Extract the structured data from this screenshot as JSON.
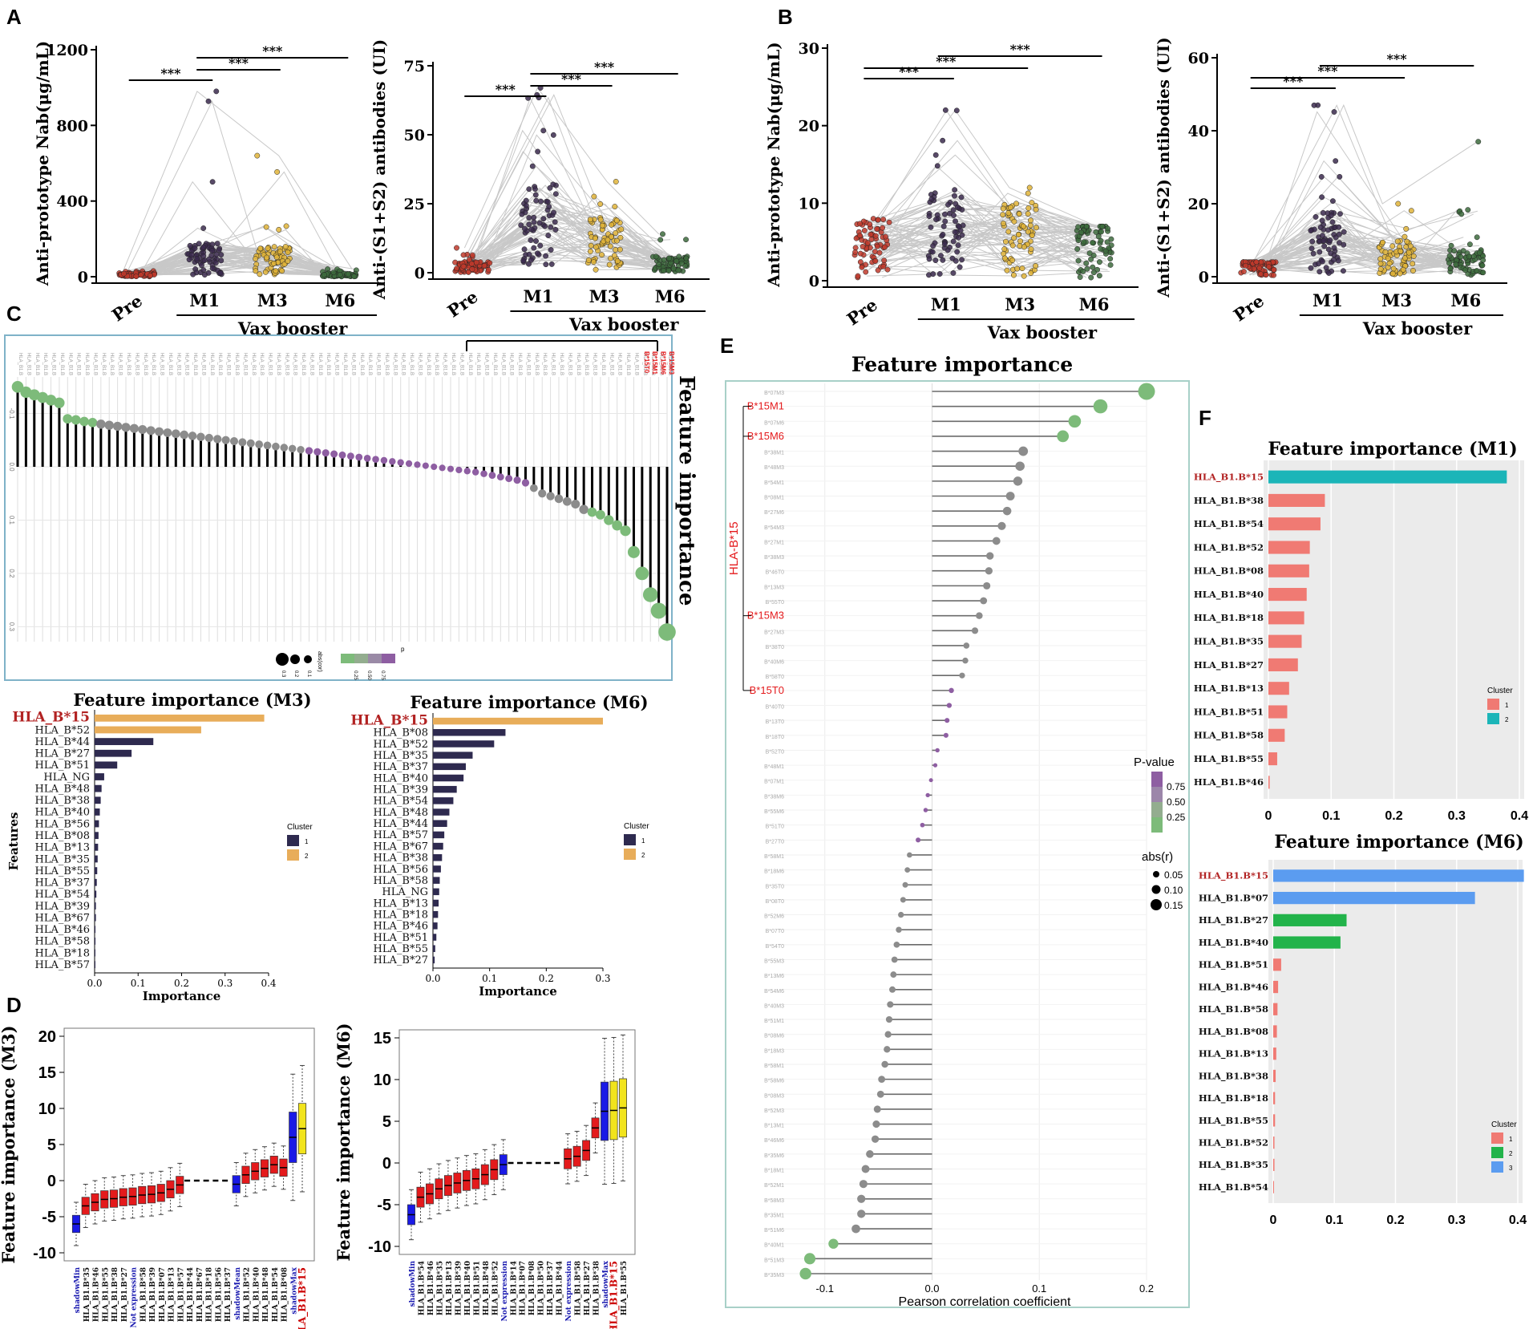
{
  "panel_labels": [
    "A",
    "B",
    "C",
    "D",
    "E",
    "F"
  ],
  "colors": {
    "pre": "#c0392b",
    "m1": "#3b2a4d",
    "m3": "#e0b43a",
    "m6": "#3d6b3d",
    "line": "#c8c8c8",
    "navy": "#2e2a4f",
    "orange": "#e8ad5a",
    "teal": "#1bb5b8",
    "salmon": "#f07a73",
    "blue": "#5b9cf0",
    "green": "#22b34a",
    "red": "#e41a1c",
    "boxblue": "#1a1ae6",
    "yellow": "#f2e41c",
    "lollipop_green": "#7dbb7a",
    "lollipop_grey": "#8c8c8c",
    "lollipop_purple": "#8e5ea2"
  },
  "chart_data": [
    {
      "id": "A1",
      "type": "scatter",
      "ylabel": "Anti-prototype Nab(μg/mL)",
      "ylim": [
        0,
        1200
      ],
      "yticks": [
        0,
        400,
        800,
        1200
      ],
      "categories": [
        "Pre",
        "M1",
        "M3",
        "M6"
      ],
      "group_label": "Vax booster",
      "medians": [
        10,
        90,
        80,
        8
      ],
      "maxima": [
        30,
        980,
        640,
        40
      ],
      "significance": [
        {
          "from": "Pre",
          "to": "M1",
          "label": "***"
        },
        {
          "from": "M1",
          "to": "M3",
          "label": "***"
        },
        {
          "from": "M1",
          "to": "M6",
          "label": "***"
        }
      ]
    },
    {
      "id": "A2",
      "type": "scatter",
      "ylabel": "Anti-(S1+S2) antibodies (UI)",
      "ylim": [
        0,
        75
      ],
      "yticks": [
        0,
        25,
        50,
        75
      ],
      "categories": [
        "Pre",
        "M1",
        "M3",
        "M6"
      ],
      "group_label": "Vax booster",
      "medians": [
        2,
        16,
        10,
        3
      ],
      "maxima": [
        9,
        67,
        33,
        14
      ],
      "significance": [
        {
          "from": "Pre",
          "to": "M1",
          "label": "***"
        },
        {
          "from": "M1",
          "to": "M3",
          "label": "***"
        },
        {
          "from": "M1",
          "to": "M6",
          "label": "***"
        }
      ]
    },
    {
      "id": "B1",
      "type": "scatter",
      "ylabel": "Anti-prototype Nab(μg/mL)",
      "ylim": [
        0,
        30
      ],
      "yticks": [
        0,
        10,
        20,
        30
      ],
      "categories": [
        "Pre",
        "M1",
        "M3",
        "M6"
      ],
      "group_label": "Vax booster",
      "medians": [
        4,
        6,
        5,
        4
      ],
      "maxima": [
        8,
        22,
        12,
        7
      ],
      "significance": [
        {
          "from": "Pre",
          "to": "M1",
          "label": "***"
        },
        {
          "from": "Pre",
          "to": "M3",
          "label": "***"
        },
        {
          "from": "M1",
          "to": "M6",
          "label": "***"
        }
      ]
    },
    {
      "id": "B2",
      "type": "scatter",
      "ylabel": "Anti-(S1+S2) antibodies (UI)",
      "ylim": [
        0,
        60
      ],
      "yticks": [
        0,
        20,
        40,
        60
      ],
      "categories": [
        "Pre",
        "M1",
        "M3",
        "M6"
      ],
      "group_label": "Vax booster",
      "medians": [
        3,
        9,
        5,
        4
      ],
      "maxima": [
        4,
        47,
        20,
        37
      ],
      "significance": [
        {
          "from": "Pre",
          "to": "M1",
          "label": "***"
        },
        {
          "from": "Pre",
          "to": "M3",
          "label": "***"
        },
        {
          "from": "M1",
          "to": "M6",
          "label": "***"
        }
      ]
    },
    {
      "id": "C_lollipop",
      "type": "lollipop",
      "title": "Feature importance",
      "ytick_labels": [
        "-0.1",
        "0.0",
        "0.1",
        "0.2",
        "0.3"
      ],
      "highlighted": [
        "B*15T0",
        "B*15M1",
        "B*15M6",
        "B*15M3"
      ],
      "legend": {
        "size_title": "abs(cor)",
        "size_labels": [
          "0.3",
          "0.2",
          "0.1"
        ],
        "color_title": "p",
        "color_labels": [
          "0.25",
          "0.50",
          "0.75"
        ]
      },
      "values": [
        -0.15,
        -0.14,
        -0.135,
        -0.13,
        -0.125,
        -0.12,
        -0.09,
        -0.088,
        -0.085,
        -0.083,
        -0.08,
        -0.078,
        -0.076,
        -0.074,
        -0.072,
        -0.07,
        -0.068,
        -0.066,
        -0.064,
        -0.062,
        -0.06,
        -0.058,
        -0.056,
        -0.054,
        -0.052,
        -0.05,
        -0.048,
        -0.046,
        -0.044,
        -0.042,
        -0.04,
        -0.038,
        -0.036,
        -0.034,
        -0.032,
        -0.03,
        -0.028,
        -0.026,
        -0.024,
        -0.022,
        -0.02,
        -0.018,
        -0.016,
        -0.014,
        -0.012,
        -0.01,
        -0.008,
        -0.006,
        -0.004,
        -0.002,
        0.0,
        0.002,
        0.004,
        0.006,
        0.008,
        0.01,
        0.013,
        0.016,
        0.019,
        0.022,
        0.025,
        0.03,
        0.04,
        0.05,
        0.055,
        0.06,
        0.065,
        0.07,
        0.08,
        0.085,
        0.09,
        0.1,
        0.11,
        0.12,
        0.16,
        0.2,
        0.24,
        0.27,
        0.31
      ]
    },
    {
      "id": "C_M3",
      "type": "bar",
      "title": "Feature importance (M3)",
      "xlabel": "Importance",
      "ylabel": "Features",
      "xlim": [
        0,
        0.4
      ],
      "xticks": [
        "0.0",
        "0.1",
        "0.2",
        "0.3",
        "0.4"
      ],
      "categories": [
        "HLA_B*15",
        "HLA_B*52",
        "HLA_B*44",
        "HLA_B*27",
        "HLA_B*51",
        "HLA_NG",
        "HLA_B*48",
        "HLA_B*38",
        "HLA_B*40",
        "HLA_B*56",
        "HLA_B*08",
        "HLA_B*13",
        "HLA_B*35",
        "HLA_B*55",
        "HLA_B*37",
        "HLA_B*54",
        "HLA_B*39",
        "HLA_B*67",
        "HLA_B*46",
        "HLA_B*58",
        "HLA_B*18",
        "HLA_B*57"
      ],
      "values": [
        0.39,
        0.245,
        0.135,
        0.085,
        0.052,
        0.022,
        0.016,
        0.014,
        0.012,
        0.01,
        0.009,
        0.008,
        0.007,
        0.006,
        0.005,
        0.004,
        0.003,
        0.003,
        0.002,
        0.002,
        0.001,
        0.001
      ],
      "cluster": [
        2,
        2,
        1,
        1,
        1,
        1,
        1,
        1,
        1,
        1,
        1,
        1,
        1,
        1,
        1,
        1,
        1,
        1,
        1,
        1,
        1,
        1
      ],
      "legend_title": "Cluster",
      "legend_items": [
        "1",
        "2"
      ]
    },
    {
      "id": "C_M6",
      "type": "bar",
      "title": "Feature importance (M6)",
      "xlabel": "Importance",
      "xlim": [
        0,
        0.3
      ],
      "xticks": [
        "0.0",
        "0.1",
        "0.2",
        "0.3"
      ],
      "categories": [
        "HLA_B*15",
        "HLA_B*08",
        "HLA_B*52",
        "HLA_B*35",
        "HLA_B*37",
        "HLA_B*40",
        "HLA_B*39",
        "HLA_B*54",
        "HLA_B*48",
        "HLA_B*44",
        "HLA_B*57",
        "HLA_B*67",
        "HLA_B*38",
        "HLA_B*56",
        "HLA_B*58",
        "HLA_NG",
        "HLA_B*13",
        "HLA_B*18",
        "HLA_B*46",
        "HLA_B*51",
        "HLA_B*55",
        "HLA_B*27"
      ],
      "values": [
        0.3,
        0.128,
        0.108,
        0.07,
        0.058,
        0.054,
        0.042,
        0.036,
        0.029,
        0.025,
        0.02,
        0.018,
        0.016,
        0.014,
        0.012,
        0.011,
        0.01,
        0.009,
        0.008,
        0.006,
        0.004,
        0.003
      ],
      "cluster": [
        2,
        1,
        1,
        1,
        1,
        1,
        1,
        1,
        1,
        1,
        1,
        1,
        1,
        1,
        1,
        1,
        1,
        1,
        1,
        1,
        1,
        1
      ],
      "legend_title": "Cluster",
      "legend_items": [
        "1",
        "2"
      ]
    },
    {
      "id": "D_M3",
      "type": "box",
      "ylabel": "Feature importance (M3)",
      "ylim": [
        -10,
        20
      ],
      "yticks": [
        -10,
        -5,
        0,
        5,
        10,
        15,
        20
      ],
      "categories": [
        "shadowMin",
        "HLA_B1.B*35",
        "HLA_B1.B*46",
        "HLA_B1.B*55",
        "HLA_B1.B*38",
        "HLA_B1.B*27",
        "Not expression",
        "HLA_B1.B*58",
        "HLA_B1.B*39",
        "HLA_B1.B*07",
        "HLA_B1.B*13",
        "HLA_B1.B*57",
        "HLA_B1.B*44",
        "HLA_B1.B*67",
        "HLA_B1.B*18",
        "HLA_B1.B*56",
        "HLA_B1.B*37",
        "shadowMean",
        "HLA_B1.B*52",
        "HLA_B1.B*40",
        "HLA_B1.B*48",
        "HLA_B1.B*54",
        "HLA_B1.B*08",
        "shadowMax",
        "HLA_B1.B*15"
      ],
      "medians": [
        -6.0,
        -3.5,
        -3.0,
        -2.6,
        -2.5,
        -2.3,
        -2.2,
        -2.0,
        -1.9,
        -1.7,
        -1.2,
        -0.6,
        0,
        0,
        0,
        0,
        0,
        -0.5,
        0.8,
        1.3,
        1.7,
        2.2,
        1.8,
        6.0,
        7.2
      ],
      "kinds": [
        "shadow",
        "rejected",
        "rejected",
        "rejected",
        "rejected",
        "rejected",
        "rejected",
        "rejected",
        "rejected",
        "rejected",
        "rejected",
        "rejected",
        "tentative",
        "tentative",
        "tentative",
        "tentative",
        "tentative",
        "shadow",
        "confirmed",
        "confirmed",
        "confirmed",
        "confirmed",
        "confirmed",
        "shadow",
        "top"
      ]
    },
    {
      "id": "D_M6",
      "type": "box",
      "ylabel": "Feature importance (M6)",
      "ylim": [
        -10,
        15
      ],
      "yticks": [
        -10,
        -5,
        0,
        5,
        10,
        15
      ],
      "categories": [
        "shadowMin",
        "HLA_B1.B*54",
        "HLA_B1.B*46",
        "HLA_B1.B*35",
        "HLA_B1.B*13",
        "HLA_B1.B*39",
        "HLA_B1.B*40",
        "HLA_B1.B*51",
        "HLA_B1.B*48",
        "HLA_B1.B*52",
        "Not expression",
        "HLA_B1.B*14",
        "HLA_B1.B*07",
        "HLA_B1.B*08",
        "HLA_B1.B*50",
        "HLA_B1.B*37",
        "HLA_B1.B*44",
        "Not expression",
        "HLA_B1.B*58",
        "HLA_B1.B*27",
        "HLA_B1.B*38",
        "shadowMax",
        "HLA_B1.B*15",
        "HLA_B1.B*55"
      ],
      "medians": [
        -6.2,
        -4.1,
        -3.7,
        -3.1,
        -2.7,
        -2.4,
        -2.1,
        -1.9,
        -1.4,
        -0.8,
        -0.2,
        0,
        0,
        0,
        0,
        0,
        0,
        0.5,
        0.8,
        1.5,
        4.2,
        6.2,
        6.3,
        6.6
      ],
      "kinds": [
        "shadow",
        "rejected",
        "rejected",
        "rejected",
        "rejected",
        "rejected",
        "rejected",
        "rejected",
        "rejected",
        "rejected",
        "shadow",
        "tentative",
        "tentative",
        "tentative",
        "tentative",
        "tentative",
        "tentative",
        "confirmed",
        "confirmed",
        "confirmed",
        "confirmed",
        "shadow",
        "top",
        "top"
      ]
    },
    {
      "id": "E",
      "type": "lollipop",
      "title": "Feature importance",
      "xlabel": "Pearson correlation coefficient",
      "xlim": [
        -0.12,
        0.2
      ],
      "xticks": [
        "-0.1",
        "0.0",
        "0.1",
        "0.2"
      ],
      "group_label": "HLA-B*15",
      "categories": [
        "B*07M3",
        "B*15M1",
        "B*07M6",
        "B*15M6",
        "B*38M1",
        "B*48M3",
        "B*54M1",
        "B*08M1",
        "B*27M6",
        "B*54M3",
        "B*27M1",
        "B*38M3",
        "B*46T0",
        "B*13M3",
        "B*55T0",
        "B*15M3",
        "B*27M3",
        "B*38T0",
        "B*40M6",
        "B*58T0",
        "B*15T0",
        "B*40T0",
        "B*13T0",
        "B*18T0",
        "B*52T0",
        "B*48M1",
        "B*07M1",
        "B*38M6",
        "B*55M6",
        "B*51T0",
        "B*27T0",
        "B*58M1",
        "B*18M6",
        "B*35T0",
        "B*08T0",
        "B*52M6",
        "B*07T0",
        "B*54T0",
        "B*55M3",
        "B*13M6",
        "B*54M6",
        "B*40M3",
        "B*51M1",
        "B*08M6",
        "B*18M3",
        "B*58M1",
        "B*58M6",
        "B*08M3",
        "B*52M3",
        "B*13M1",
        "B*46M6",
        "B*35M6",
        "B*18M1",
        "B*52M1",
        "B*58M3",
        "B*35M1",
        "B*51M6",
        "B*40M1",
        "B*51M3",
        "B*35M3"
      ],
      "highlighted": [
        "B*15M1",
        "B*15M6",
        "B*15M3",
        "B*15T0"
      ],
      "values": [
        0.2,
        0.157,
        0.133,
        0.122,
        0.085,
        0.082,
        0.08,
        0.073,
        0.07,
        0.065,
        0.06,
        0.054,
        0.053,
        0.051,
        0.048,
        0.044,
        0.04,
        0.032,
        0.031,
        0.028,
        0.018,
        0.016,
        0.014,
        0.013,
        0.005,
        0.003,
        -0.001,
        -0.004,
        -0.006,
        -0.009,
        -0.013,
        -0.021,
        -0.023,
        -0.025,
        -0.027,
        -0.029,
        -0.031,
        -0.033,
        -0.035,
        -0.036,
        -0.037,
        -0.039,
        -0.04,
        -0.041,
        -0.042,
        -0.044,
        -0.047,
        -0.048,
        -0.051,
        -0.052,
        -0.053,
        -0.058,
        -0.062,
        -0.064,
        -0.066,
        -0.066,
        -0.071,
        -0.092,
        -0.114,
        -0.118
      ],
      "legend": {
        "p_title": "P-value",
        "p_labels": [
          "0.75",
          "0.50",
          "0.25"
        ],
        "size_title": "abs(r)",
        "size_labels": [
          "0.05",
          "0.10",
          "0.15"
        ]
      }
    },
    {
      "id": "F_M1",
      "type": "bar",
      "title": "Feature importance (M1)",
      "xlim": [
        0,
        0.4
      ],
      "xticks": [
        "0",
        "0.1",
        "0.2",
        "0.3",
        "0.4"
      ],
      "categories": [
        "HLA_B1.B*15",
        "HLA_B1.B*38",
        "HLA_B1.B*54",
        "HLA_B1.B*52",
        "HLA_B1.B*08",
        "HLA_B1.B*40",
        "HLA_B1.B*18",
        "HLA_B1.B*35",
        "HLA_B1.B*27",
        "HLA_B1.B*13",
        "HLA_B1.B*51",
        "HLA_B1.B*58",
        "HLA_B1.B*55",
        "HLA_B1.B*46"
      ],
      "values": [
        0.38,
        0.09,
        0.083,
        0.066,
        0.065,
        0.061,
        0.057,
        0.053,
        0.047,
        0.033,
        0.03,
        0.026,
        0.014,
        0.002
      ],
      "cluster": [
        2,
        1,
        1,
        1,
        1,
        1,
        1,
        1,
        1,
        1,
        1,
        1,
        1,
        1
      ],
      "legend_title": "Cluster",
      "legend_items": [
        "1",
        "2"
      ]
    },
    {
      "id": "F_M6",
      "type": "bar",
      "title": "Feature importance (M6)",
      "xlim": [
        0,
        0.4
      ],
      "xticks": [
        "0",
        "0.1",
        "0.2",
        "0.3",
        "0.4"
      ],
      "categories": [
        "HLA_B1.B*15",
        "HLA_B1.B*07",
        "HLA_B1.B*27",
        "HLA_B1.B*40",
        "HLA_B1.B*51",
        "HLA_B1.B*46",
        "HLA_B1.B*58",
        "HLA_B1.B*08",
        "HLA_B1.B*13",
        "HLA_B1.B*38",
        "HLA_B1.B*18",
        "HLA_B1.B*55",
        "HLA_B1.B*52",
        "HLA_B1.B*35",
        "HLA_B1.B*54"
      ],
      "values": [
        0.41,
        0.33,
        0.12,
        0.11,
        0.013,
        0.008,
        0.007,
        0.006,
        0.005,
        0.004,
        0.003,
        0.003,
        0.002,
        0.002,
        0.001
      ],
      "cluster": [
        3,
        3,
        2,
        2,
        1,
        1,
        1,
        1,
        1,
        1,
        1,
        1,
        1,
        1,
        1
      ],
      "legend_title": "Cluster",
      "legend_items": [
        "1",
        "2",
        "3"
      ]
    }
  ]
}
